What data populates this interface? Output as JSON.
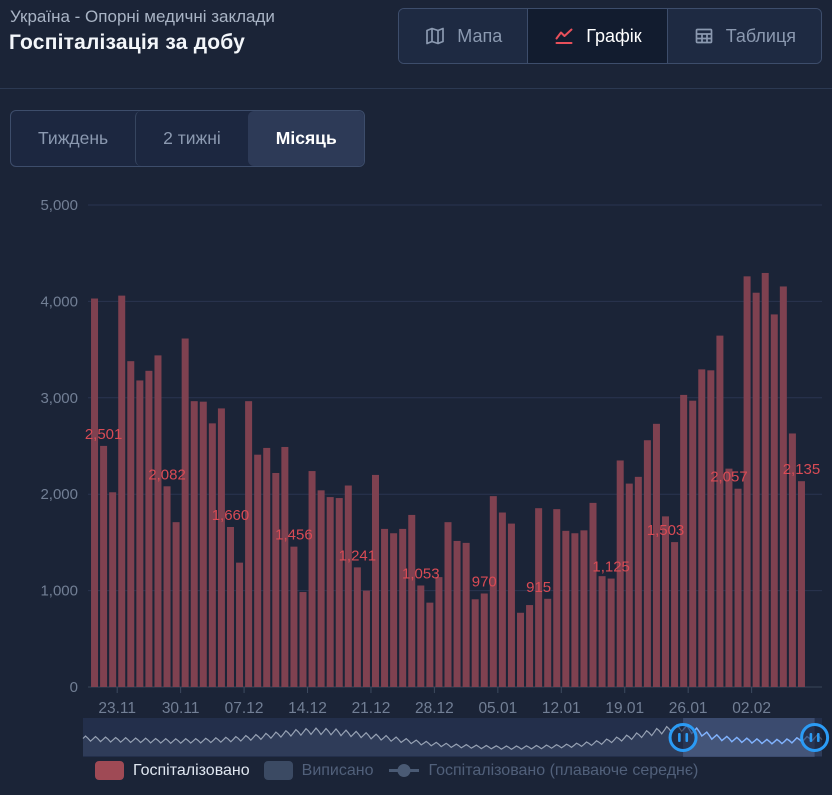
{
  "header": {
    "subtitle": "Україна - Опорні медичні заклади",
    "title": "Госпіталізація за добу",
    "view_tabs": [
      {
        "id": "map",
        "label": "Мапа",
        "icon": "map-icon",
        "active": false
      },
      {
        "id": "chart",
        "label": "Графік",
        "icon": "chart-icon",
        "active": true
      },
      {
        "id": "table",
        "label": "Таблиця",
        "icon": "table-icon",
        "active": false
      }
    ]
  },
  "range_tabs": [
    {
      "id": "week",
      "label": "Тиждень",
      "active": false
    },
    {
      "id": "two-weeks",
      "label": "2 тижні",
      "active": false
    },
    {
      "id": "month",
      "label": "Місяць",
      "active": true
    }
  ],
  "chart_data": {
    "type": "bar",
    "title": "Госпіталізація за добу",
    "series_name": "Госпіталізовано",
    "ylabel": "",
    "xlabel": "",
    "ylim": [
      0,
      5000
    ],
    "y_ticks": [
      0,
      1000,
      2000,
      3000,
      4000,
      5000
    ],
    "grid": true,
    "legend_position": "bottom",
    "x_tick_labels": [
      "23.11",
      "30.11",
      "07.12",
      "14.12",
      "21.12",
      "28.12",
      "05.01",
      "12.01",
      "19.01",
      "26.01",
      "02.02"
    ],
    "values": [
      4030,
      2501,
      2020,
      4060,
      3380,
      3180,
      3280,
      3440,
      2082,
      1710,
      3615,
      2965,
      2960,
      2735,
      2890,
      1660,
      1290,
      2965,
      2410,
      2480,
      2220,
      2490,
      1456,
      985,
      2240,
      2040,
      1970,
      1960,
      2090,
      1241,
      1000,
      2200,
      1640,
      1595,
      1640,
      1785,
      1053,
      875,
      1140,
      1710,
      1515,
      1495,
      910,
      970,
      1980,
      1810,
      1695,
      770,
      850,
      1855,
      915,
      1845,
      1620,
      1595,
      1625,
      1910,
      1150,
      1125,
      2350,
      2110,
      2180,
      2560,
      2730,
      1770,
      1503,
      3030,
      2970,
      3295,
      3285,
      3645,
      2265,
      2057,
      4260,
      4090,
      4295,
      3865,
      4155,
      2630,
      2135
    ],
    "labeled_indices": [
      1,
      8,
      15,
      22,
      29,
      36,
      43,
      49,
      57,
      63,
      70,
      78
    ],
    "label_values": [
      2501,
      2082,
      1660,
      1456,
      1241,
      1053,
      970,
      915,
      1125,
      1503,
      2057,
      2135
    ],
    "bar_color": "#7f4150",
    "label_color": "#d94b55",
    "axis_label_color": "#727f95",
    "grid_color": "#2a3550"
  },
  "navigator": {
    "envelope": [
      [
        0,
        0.5
      ],
      [
        0.04,
        0.46
      ],
      [
        0.08,
        0.44
      ],
      [
        0.12,
        0.42
      ],
      [
        0.16,
        0.43
      ],
      [
        0.2,
        0.47
      ],
      [
        0.24,
        0.55
      ],
      [
        0.28,
        0.66
      ],
      [
        0.31,
        0.72
      ],
      [
        0.34,
        0.7
      ],
      [
        0.38,
        0.6
      ],
      [
        0.42,
        0.48
      ],
      [
        0.46,
        0.36
      ],
      [
        0.5,
        0.28
      ],
      [
        0.54,
        0.24
      ],
      [
        0.58,
        0.22
      ],
      [
        0.62,
        0.24
      ],
      [
        0.66,
        0.28
      ],
      [
        0.7,
        0.38
      ],
      [
        0.74,
        0.54
      ],
      [
        0.77,
        0.68
      ],
      [
        0.79,
        0.76
      ],
      [
        0.81,
        0.82
      ],
      [
        0.83,
        0.72
      ],
      [
        0.85,
        0.56
      ],
      [
        0.87,
        0.49
      ],
      [
        0.89,
        0.45
      ],
      [
        0.91,
        0.42
      ],
      [
        0.93,
        0.4
      ],
      [
        0.95,
        0.41
      ],
      [
        0.97,
        0.46
      ],
      [
        1,
        0.54
      ]
    ],
    "window_start": 0.812,
    "window_end": 0.99,
    "handle_icon": "pause-icon",
    "line_color": "#97a2b4",
    "window_line_color": "#7fb2ff",
    "handle_color": "#2b9bf5",
    "bg_color": "#232f4b"
  },
  "legend": [
    {
      "id": "hospitalized",
      "label": "Госпіталізовано",
      "marker": "bar-swatch",
      "color": "#9f4a55",
      "active": true
    },
    {
      "id": "discharged",
      "label": "Виписано",
      "marker": "bar-swatch",
      "color": "#3b4a63",
      "active": false
    },
    {
      "id": "hospitalized-avg",
      "label": "Госпіталізовано (плаваюче середнє)",
      "marker": "line-marker",
      "color": "#4a5a74",
      "active": false
    }
  ]
}
